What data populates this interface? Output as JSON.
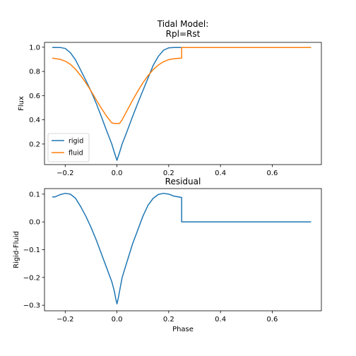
{
  "chart_data": [
    {
      "type": "line",
      "title_lines": [
        "Tidal Model:",
        "Rpl=Rst"
      ],
      "xlabel": "",
      "ylabel": "Flux",
      "xlim": [
        -0.28,
        0.79
      ],
      "ylim": [
        0.03,
        1.04
      ],
      "xticks": [
        -0.2,
        0.0,
        0.2,
        0.4,
        0.6
      ],
      "xtick_labels": [
        "−0.2",
        "0.0",
        "0.2",
        "0.4",
        "0.6"
      ],
      "yticks": [
        0.2,
        0.4,
        0.6,
        0.8,
        1.0
      ],
      "ytick_labels": [
        "0.2",
        "0.4",
        "0.6",
        "0.8",
        "1.0"
      ],
      "grid": false,
      "legend": "lower-left",
      "series": [
        {
          "name": "rigid",
          "color": "#1f77b4",
          "points": [
            [
              -0.25,
              0.998
            ],
            [
              -0.22,
              0.998
            ],
            [
              -0.2,
              0.99
            ],
            [
              -0.18,
              0.955
            ],
            [
              -0.16,
              0.895
            ],
            [
              -0.14,
              0.81
            ],
            [
              -0.12,
              0.725
            ],
            [
              -0.1,
              0.635
            ],
            [
              -0.08,
              0.535
            ],
            [
              -0.06,
              0.425
            ],
            [
              -0.04,
              0.31
            ],
            [
              -0.02,
              0.2
            ],
            [
              -0.01,
              0.13
            ],
            [
              0.0,
              0.065
            ],
            [
              0.01,
              0.13
            ],
            [
              0.02,
              0.2
            ],
            [
              0.04,
              0.31
            ],
            [
              0.06,
              0.425
            ],
            [
              0.08,
              0.535
            ],
            [
              0.1,
              0.64
            ],
            [
              0.12,
              0.745
            ],
            [
              0.14,
              0.85
            ],
            [
              0.16,
              0.925
            ],
            [
              0.18,
              0.975
            ],
            [
              0.2,
              0.995
            ],
            [
              0.22,
              0.998
            ],
            [
              0.25,
              0.998
            ],
            [
              0.26,
              0.998
            ],
            [
              0.75,
              0.998
            ]
          ]
        },
        {
          "name": "fluid",
          "color": "#ff7f0e",
          "points": [
            [
              -0.25,
              0.91
            ],
            [
              -0.22,
              0.9
            ],
            [
              -0.2,
              0.885
            ],
            [
              -0.18,
              0.858
            ],
            [
              -0.16,
              0.818
            ],
            [
              -0.14,
              0.765
            ],
            [
              -0.12,
              0.705
            ],
            [
              -0.1,
              0.638
            ],
            [
              -0.08,
              0.565
            ],
            [
              -0.06,
              0.495
            ],
            [
              -0.04,
              0.43
            ],
            [
              -0.02,
              0.375
            ],
            [
              -0.01,
              0.37
            ],
            [
              0.0,
              0.37
            ],
            [
              0.01,
              0.37
            ],
            [
              0.02,
              0.4
            ],
            [
              0.04,
              0.48
            ],
            [
              0.06,
              0.56
            ],
            [
              0.08,
              0.635
            ],
            [
              0.1,
              0.705
            ],
            [
              0.12,
              0.765
            ],
            [
              0.14,
              0.815
            ],
            [
              0.16,
              0.853
            ],
            [
              0.18,
              0.88
            ],
            [
              0.2,
              0.897
            ],
            [
              0.22,
              0.905
            ],
            [
              0.25,
              0.91
            ],
            [
              0.25,
              0.998
            ],
            [
              0.75,
              0.998
            ]
          ]
        }
      ]
    },
    {
      "type": "line",
      "title": "Residual",
      "xlabel": "Phase",
      "ylabel": "Rigid-Fluid",
      "xlim": [
        -0.28,
        0.79
      ],
      "ylim": [
        -0.32,
        0.12
      ],
      "xticks": [
        -0.2,
        0.0,
        0.2,
        0.4,
        0.6
      ],
      "xtick_labels": [
        "−0.2",
        "0.0",
        "0.2",
        "0.4",
        "0.6"
      ],
      "yticks": [
        -0.3,
        -0.2,
        -0.1,
        0.0,
        0.1
      ],
      "ytick_labels": [
        "−0.3",
        "−0.2",
        "−0.1",
        "0.0",
        "0.1"
      ],
      "grid": false,
      "series": [
        {
          "name": "",
          "color": "#1f77b4",
          "points": [
            [
              -0.25,
              0.09
            ],
            [
              -0.24,
              0.09
            ],
            [
              -0.22,
              0.098
            ],
            [
              -0.2,
              0.103
            ],
            [
              -0.18,
              0.1
            ],
            [
              -0.16,
              0.085
            ],
            [
              -0.14,
              0.055
            ],
            [
              -0.12,
              0.02
            ],
            [
              -0.1,
              -0.02
            ],
            [
              -0.08,
              -0.065
            ],
            [
              -0.06,
              -0.115
            ],
            [
              -0.04,
              -0.165
            ],
            [
              -0.02,
              -0.215
            ],
            [
              -0.01,
              -0.25
            ],
            [
              -0.005,
              -0.275
            ],
            [
              0.0,
              -0.295
            ],
            [
              0.005,
              -0.275
            ],
            [
              0.01,
              -0.25
            ],
            [
              0.02,
              -0.2
            ],
            [
              0.04,
              -0.14
            ],
            [
              0.06,
              -0.08
            ],
            [
              0.08,
              -0.03
            ],
            [
              0.1,
              0.02
            ],
            [
              0.12,
              0.06
            ],
            [
              0.14,
              0.085
            ],
            [
              0.16,
              0.099
            ],
            [
              0.18,
              0.103
            ],
            [
              0.2,
              0.1
            ],
            [
              0.22,
              0.093
            ],
            [
              0.25,
              0.088
            ],
            [
              0.25,
              0.0
            ],
            [
              0.75,
              0.0
            ]
          ]
        }
      ]
    }
  ]
}
